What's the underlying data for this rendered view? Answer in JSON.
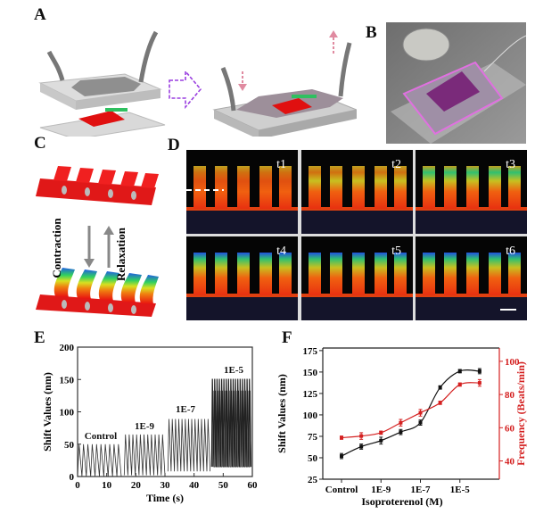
{
  "panels": {
    "A": {
      "label": "A"
    },
    "B": {
      "label": "B"
    },
    "C": {
      "label": "C",
      "contraction": "Contraction",
      "relaxation": "Relaxation"
    },
    "D": {
      "label": "D",
      "frames": [
        "t1",
        "t2",
        "t3",
        "t4",
        "t5",
        "t6"
      ]
    },
    "E": {
      "label": "E"
    },
    "F": {
      "label": "F"
    }
  },
  "colors": {
    "red_series": "#d42020",
    "black_series": "#111111",
    "arrow_purple": "#9a3fe0",
    "arrow_pink": "#e08aa0"
  },
  "chart_data": [
    {
      "id": "E",
      "type": "line",
      "title": "",
      "xlabel": "Time (s)",
      "ylabel": "Shift Values (nm)",
      "xlim": [
        0,
        60
      ],
      "ylim": [
        0,
        200
      ],
      "xticks": [
        0,
        10,
        20,
        30,
        40,
        50,
        60
      ],
      "yticks": [
        0,
        50,
        100,
        150,
        200
      ],
      "grid": false,
      "segments": [
        {
          "name": "Control",
          "start": 0,
          "end": 15,
          "peak": 50,
          "trough": 0,
          "beats": 10
        },
        {
          "name": "1E-9",
          "start": 16,
          "end": 30,
          "peak": 65,
          "trough": 2,
          "beats": 11
        },
        {
          "name": "1E-7",
          "start": 31,
          "end": 45.5,
          "peak": 89,
          "trough": 8,
          "beats": 13
        },
        {
          "name": "1E-5",
          "start": 46,
          "end": 59.5,
          "peak": 151,
          "trough": 15,
          "beats": 17
        }
      ]
    },
    {
      "id": "F",
      "type": "line",
      "xlabel": "Isoproterenol (M)",
      "ylabel": "Shift Values (nm)",
      "ylabel_right": "Frequency (Beats/min)",
      "categories": [
        "Control",
        "1E-10",
        "1E-9",
        "1E-8",
        "1E-7",
        "1E-6",
        "1E-5",
        "1E-4"
      ],
      "xtick_labels": [
        "Control",
        "1E-9",
        "1E-7",
        "1E-5"
      ],
      "ylim": [
        25,
        178
      ],
      "yticks": [
        25,
        50,
        75,
        100,
        125,
        150,
        175
      ],
      "ylim_right": [
        29,
        108
      ],
      "yticks_right": [
        40,
        60,
        80,
        100
      ],
      "grid": false,
      "series": [
        {
          "name": "Shift Values",
          "axis": "left",
          "values": [
            52,
            63,
            70,
            80,
            91,
            132,
            151,
            151
          ],
          "errors": [
            3,
            3,
            4,
            3,
            3,
            2,
            2,
            3
          ]
        },
        {
          "name": "Frequency",
          "axis": "right",
          "values": [
            54,
            55,
            57,
            63,
            69,
            75,
            86,
            87
          ],
          "errors": [
            1,
            2,
            1,
            2,
            2,
            1,
            1,
            2
          ]
        }
      ]
    }
  ]
}
